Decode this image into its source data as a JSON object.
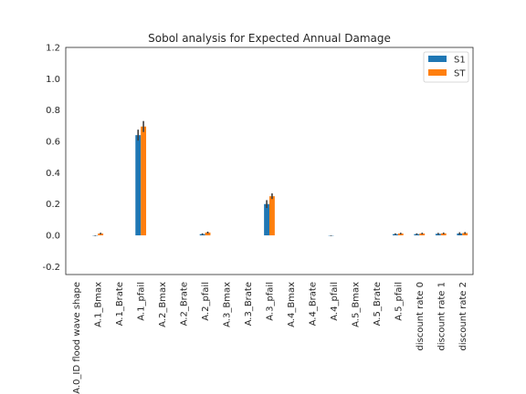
{
  "chart_data": {
    "type": "bar",
    "title": "Sobol analysis for Expected Annual Damage",
    "xlabel": "",
    "ylabel": "",
    "ylim": [
      -0.25,
      1.2
    ],
    "yticks": [
      -0.2,
      0.0,
      0.2,
      0.4,
      0.6,
      0.8,
      1.0,
      1.2
    ],
    "ytick_labels": [
      "-0.2",
      "0.0",
      "0.2",
      "0.4",
      "0.6",
      "0.8",
      "1.0",
      "1.2"
    ],
    "grid": false,
    "legend_position": "top-right",
    "categories": [
      "A.0_ID flood wave shape",
      "A.1_Bmax",
      "A.1_Brate",
      "A.1_pfail",
      "A.2_Bmax",
      "A.2_Brate",
      "A.2_pfail",
      "A.3_Bmax",
      "A.3_Brate",
      "A.3_pfail",
      "A.4_Bmax",
      "A.4_Brate",
      "A.4_pfail",
      "A.5_Bmax",
      "A.5_Brate",
      "A.5_pfail",
      "discount rate 0",
      "discount rate 1",
      "discount rate 2"
    ],
    "series": [
      {
        "name": "S1",
        "color": "#1f77b4",
        "values": [
          0.0,
          -0.002,
          0.0,
          0.64,
          0.0,
          0.0,
          0.008,
          0.0,
          0.0,
          0.2,
          0.0,
          0.0,
          -0.002,
          0.0,
          0.0,
          0.008,
          0.008,
          0.01,
          0.012
        ],
        "errors": [
          0.0,
          0.002,
          0.0,
          0.035,
          0.0,
          0.0,
          0.005,
          0.0,
          0.0,
          0.025,
          0.0,
          0.0,
          0.002,
          0.0,
          0.0,
          0.005,
          0.005,
          0.006,
          0.008
        ]
      },
      {
        "name": "ST",
        "color": "#ff7f0e",
        "values": [
          0.0,
          0.012,
          0.0,
          0.695,
          0.0,
          0.0,
          0.018,
          0.0,
          0.0,
          0.25,
          0.0,
          0.0,
          0.0,
          0.0,
          0.0,
          0.012,
          0.012,
          0.013,
          0.015
        ],
        "errors": [
          0.0,
          0.005,
          0.0,
          0.035,
          0.0,
          0.0,
          0.006,
          0.0,
          0.0,
          0.018,
          0.0,
          0.0,
          0.0,
          0.0,
          0.0,
          0.005,
          0.005,
          0.005,
          0.006
        ]
      }
    ]
  }
}
